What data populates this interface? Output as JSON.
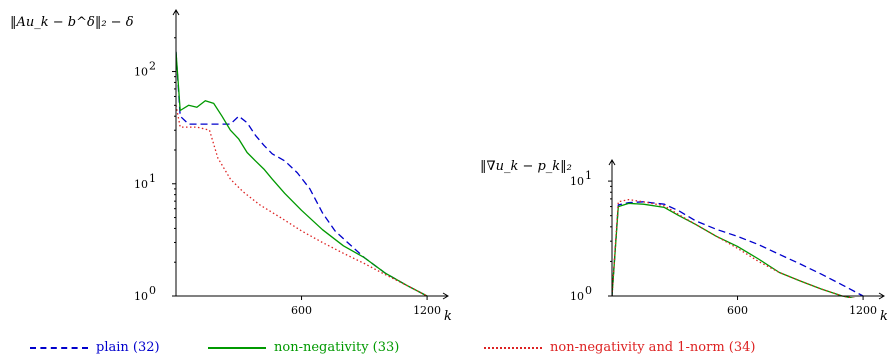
{
  "chart_data": [
    {
      "type": "line",
      "title": "",
      "ylabel": "‖Au_k − b^δ‖₂ − δ",
      "xlabel": "k",
      "yscale": "log",
      "xlim": [
        0,
        1300
      ],
      "ylim": [
        1,
        300
      ],
      "x_ticks": [
        600,
        1200
      ],
      "y_ticks": [
        {
          "value": 1,
          "base": "10",
          "exp": "0"
        },
        {
          "value": 10,
          "base": "10",
          "exp": "1"
        },
        {
          "value": 100,
          "base": "10",
          "exp": "2"
        }
      ],
      "series": [
        {
          "name": "plain (32)",
          "color": "#0000cc",
          "dash": "dashed",
          "x": [
            0,
            20,
            60,
            120,
            200,
            260,
            300,
            340,
            380,
            420,
            460,
            520,
            580,
            640,
            700,
            760,
            820,
            900,
            1000,
            1100,
            1200
          ],
          "y": [
            150,
            40,
            34,
            34,
            34,
            34,
            40,
            35,
            27,
            22,
            18.5,
            16,
            12.5,
            9,
            5.5,
            3.8,
            3.0,
            2.2,
            1.6,
            1.25,
            1.0
          ]
        },
        {
          "name": "non-negativity (33)",
          "color": "#009900",
          "dash": "solid",
          "x": [
            0,
            20,
            60,
            100,
            140,
            180,
            220,
            260,
            300,
            340,
            380,
            420,
            460,
            520,
            600,
            700,
            800,
            900,
            1000,
            1100,
            1200
          ],
          "y": [
            150,
            45,
            50,
            48,
            55,
            52,
            40,
            30,
            25,
            19,
            16,
            13.5,
            11,
            8.2,
            5.8,
            3.9,
            2.8,
            2.2,
            1.6,
            1.25,
            1.0
          ]
        },
        {
          "name": "non-negativity and 1-norm (34)",
          "color": "#dd2222",
          "dash": "dotted",
          "x": [
            0,
            20,
            100,
            160,
            200,
            260,
            320,
            400,
            500,
            600,
            700,
            800,
            900,
            1000,
            1100,
            1200
          ],
          "y": [
            50,
            32,
            32,
            30,
            17,
            11,
            8.5,
            6.5,
            5.0,
            3.8,
            3.0,
            2.4,
            1.95,
            1.55,
            1.25,
            1.0
          ]
        }
      ]
    },
    {
      "type": "line",
      "title": "",
      "ylabel": "‖∇u_k − p_k‖₂",
      "xlabel": "k",
      "yscale": "log",
      "xlim": [
        0,
        1300
      ],
      "ylim": [
        1,
        13
      ],
      "x_ticks": [
        600,
        1200
      ],
      "y_ticks": [
        {
          "value": 1,
          "base": "10",
          "exp": "0"
        },
        {
          "value": 10,
          "base": "10",
          "exp": "1"
        }
      ],
      "series": [
        {
          "name": "plain (32)",
          "color": "#0000cc",
          "dash": "dashed",
          "x": [
            0,
            30,
            80,
            150,
            250,
            320,
            400,
            500,
            600,
            700,
            800,
            900,
            1000,
            1100,
            1200
          ],
          "y": [
            1.0,
            6.2,
            6.5,
            6.6,
            6.3,
            5.5,
            4.5,
            3.8,
            3.3,
            2.8,
            2.3,
            1.9,
            1.55,
            1.25,
            1.0
          ]
        },
        {
          "name": "non-negativity (33)",
          "color": "#009900",
          "dash": "solid",
          "x": [
            0,
            30,
            80,
            150,
            250,
            320,
            400,
            500,
            600,
            700,
            800,
            900,
            1000,
            1100,
            1200
          ],
          "y": [
            1.0,
            6.0,
            6.4,
            6.3,
            5.9,
            5.0,
            4.2,
            3.3,
            2.7,
            2.1,
            1.6,
            1.35,
            1.15,
            1.0,
            0.92
          ]
        },
        {
          "name": "non-negativity and 1-norm (34)",
          "color": "#dd2222",
          "dash": "dotted",
          "x": [
            0,
            30,
            80,
            150,
            250,
            320,
            400,
            500,
            600,
            700,
            800,
            900,
            1000,
            1100,
            1200
          ],
          "y": [
            1.0,
            6.6,
            6.9,
            6.6,
            6.1,
            5.1,
            4.2,
            3.3,
            2.6,
            2.0,
            1.6,
            1.35,
            1.15,
            1.0,
            0.92
          ]
        }
      ]
    }
  ],
  "legend": [
    {
      "label": "plain (32)",
      "color": "#0000cc",
      "dash": "dashed"
    },
    {
      "label": "non-negativity (33)",
      "color": "#009900",
      "dash": "solid"
    },
    {
      "label": "non-negativity and 1-norm (34)",
      "color": "#dd2222",
      "dash": "dotted"
    }
  ]
}
